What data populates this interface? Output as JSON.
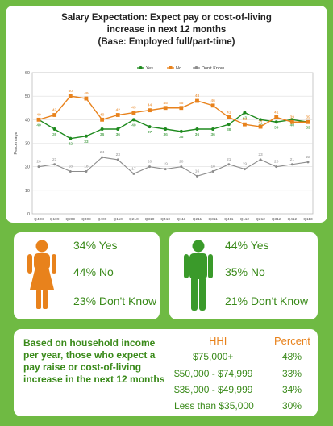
{
  "header": {
    "title_line1": "Salary Expectation: Expect pay or cost-of-living",
    "title_line2": "increase in next 12 months",
    "title_line3": "(Base: Employed full/part-time)"
  },
  "chart_data": {
    "type": "line",
    "categories": [
      "Q408",
      "Q109",
      "Q209",
      "Q309",
      "Q409",
      "Q110",
      "Q210",
      "Q310",
      "Q410",
      "Q111",
      "Q211",
      "Q311",
      "Q411",
      "Q112",
      "Q212",
      "Q312",
      "Q412",
      "Q113"
    ],
    "series": [
      {
        "name": "Yes",
        "color": "#1e8a1e",
        "marker": "circle",
        "values": [
          40,
          36,
          32,
          33,
          36,
          36,
          40,
          37,
          36,
          35,
          36,
          36,
          38,
          43,
          40,
          39,
          40,
          39
        ]
      },
      {
        "name": "No",
        "color": "#e8821c",
        "marker": "square",
        "values": [
          40,
          42,
          50,
          49,
          40,
          42,
          43,
          44,
          45,
          45,
          48,
          46,
          41,
          38,
          37,
          41,
          39,
          39
        ]
      },
      {
        "name": "Don't Know",
        "color": "#8c8c8c",
        "marker": "circle",
        "values": [
          20,
          21,
          18,
          18,
          24,
          23,
          17,
          20,
          19,
          20,
          16,
          18,
          21,
          19,
          23,
          20,
          21,
          22
        ]
      }
    ],
    "yticks": [
      0,
      10,
      20,
      30,
      40,
      50,
      60
    ],
    "ylim": [
      0,
      60
    ],
    "ylabel": "Percentage",
    "legend_position": "top",
    "grid": true
  },
  "cards": {
    "female": {
      "yes": "34% Yes",
      "no": "44% No",
      "dk": "23% Don't Know",
      "color": "#e8821c",
      "icon": "female-icon"
    },
    "male": {
      "yes": "44% Yes",
      "no": "35% No",
      "dk": "21% Don't Know",
      "color": "#3a9a2a",
      "icon": "male-icon"
    }
  },
  "hhi": {
    "description": "Based on household income per year, those who expect a pay raise or cost-of-living increase in the next 12 months",
    "col_hhi": "HHI",
    "col_pct": "Percent",
    "rows": [
      {
        "range": "$75,000+",
        "pct": "48%"
      },
      {
        "range": "$50,000 - $74,999",
        "pct": "33%"
      },
      {
        "range": "$35,000 - $49,999",
        "pct": "34%"
      },
      {
        "range": "Less than $35,000",
        "pct": "30%"
      }
    ]
  }
}
